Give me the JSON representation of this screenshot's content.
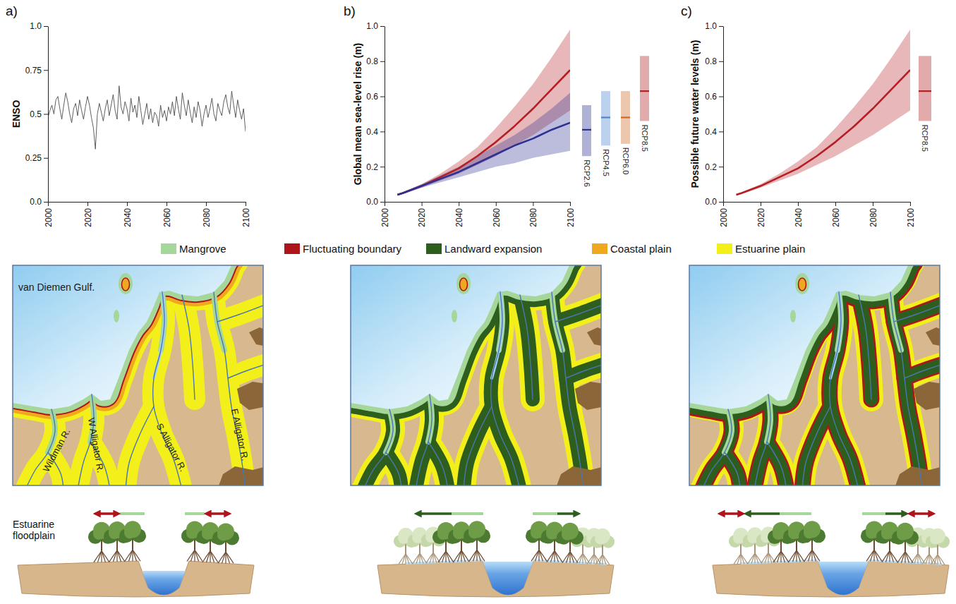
{
  "chart_data": [
    {
      "type": "line",
      "panel_label": "a)",
      "y_label": "ENSO",
      "x": [
        2000,
        2001,
        2002,
        2003,
        2004,
        2005,
        2006,
        2007,
        2008,
        2009,
        2010,
        2011,
        2012,
        2013,
        2014,
        2015,
        2016,
        2017,
        2018,
        2019,
        2020,
        2021,
        2022,
        2023,
        2024,
        2025,
        2026,
        2027,
        2028,
        2029,
        2030,
        2031,
        2032,
        2033,
        2034,
        2035,
        2036,
        2037,
        2038,
        2039,
        2040,
        2041,
        2042,
        2043,
        2044,
        2045,
        2046,
        2047,
        2048,
        2049,
        2050,
        2051,
        2052,
        2053,
        2054,
        2055,
        2056,
        2057,
        2058,
        2059,
        2060,
        2061,
        2062,
        2063,
        2064,
        2065,
        2066,
        2067,
        2068,
        2069,
        2070,
        2071,
        2072,
        2073,
        2074,
        2075,
        2076,
        2077,
        2078,
        2079,
        2080,
        2081,
        2082,
        2083,
        2084,
        2085,
        2086,
        2087,
        2088,
        2089,
        2090,
        2091,
        2092,
        2093,
        2094,
        2095,
        2096,
        2097,
        2098,
        2099,
        2100
      ],
      "series": [
        {
          "color": "#4d4d4d",
          "values": [
            0.48,
            0.52,
            0.55,
            0.5,
            0.58,
            0.6,
            0.53,
            0.47,
            0.55,
            0.62,
            0.57,
            0.5,
            0.45,
            0.53,
            0.56,
            0.49,
            0.58,
            0.52,
            0.47,
            0.54,
            0.6,
            0.55,
            0.48,
            0.42,
            0.3,
            0.5,
            0.56,
            0.51,
            0.46,
            0.53,
            0.58,
            0.49,
            0.55,
            0.61,
            0.52,
            0.47,
            0.66,
            0.54,
            0.5,
            0.57,
            0.53,
            0.46,
            0.59,
            0.51,
            0.55,
            0.48,
            0.6,
            0.52,
            0.44,
            0.5,
            0.56,
            0.47,
            0.53,
            0.45,
            0.51,
            0.49,
            0.43,
            0.55,
            0.48,
            0.52,
            0.46,
            0.54,
            0.5,
            0.57,
            0.49,
            0.6,
            0.53,
            0.47,
            0.62,
            0.55,
            0.49,
            0.58,
            0.51,
            0.45,
            0.54,
            0.48,
            0.57,
            0.52,
            0.43,
            0.5,
            0.55,
            0.48,
            0.53,
            0.59,
            0.5,
            0.46,
            0.56,
            0.52,
            0.49,
            0.57,
            0.61,
            0.54,
            0.5,
            0.63,
            0.55,
            0.48,
            0.58,
            0.52,
            0.47,
            0.53,
            0.4
          ]
        }
      ],
      "xlim": [
        2000,
        2100
      ],
      "ylim": [
        0,
        1
      ],
      "xticks": [
        2000,
        2020,
        2040,
        2060,
        2080,
        2100
      ],
      "yticks": [
        {
          "value": 0,
          "label": "0.0"
        },
        0.25,
        0.5,
        0.75,
        {
          "value": 1,
          "label": "1.0"
        }
      ],
      "grid": false
    },
    {
      "type": "line",
      "panel_label": "b)",
      "y_label": "Global mean sea-level rise (m)",
      "x": [
        2007,
        2010,
        2020,
        2030,
        2040,
        2050,
        2060,
        2070,
        2080,
        2090,
        2100
      ],
      "series": [
        {
          "color": "#b51f24",
          "values": [
            0.04,
            0.05,
            0.09,
            0.14,
            0.19,
            0.26,
            0.34,
            0.43,
            0.53,
            0.64,
            0.75
          ],
          "lower": [
            0.035,
            0.045,
            0.08,
            0.12,
            0.16,
            0.21,
            0.26,
            0.32,
            0.38,
            0.45,
            0.52
          ],
          "upper": [
            0.045,
            0.055,
            0.1,
            0.16,
            0.23,
            0.31,
            0.42,
            0.54,
            0.67,
            0.82,
            0.98
          ]
        },
        {
          "color": "#2e3192",
          "values": [
            0.04,
            0.05,
            0.09,
            0.13,
            0.17,
            0.22,
            0.27,
            0.32,
            0.36,
            0.41,
            0.45
          ],
          "lower": [
            0.035,
            0.045,
            0.08,
            0.11,
            0.14,
            0.17,
            0.2,
            0.22,
            0.25,
            0.27,
            0.29
          ],
          "upper": [
            0.045,
            0.055,
            0.1,
            0.15,
            0.2,
            0.26,
            0.32,
            0.38,
            0.45,
            0.53,
            0.62
          ]
        }
      ],
      "ranges": [
        {
          "name": "RCP2.6",
          "low": 0.26,
          "median": 0.41,
          "high": 0.55,
          "color": "#2e3192"
        },
        {
          "name": "RCP4.5",
          "low": 0.32,
          "median": 0.48,
          "high": 0.63,
          "color": "#4f86cf"
        },
        {
          "name": "RCP6.0",
          "low": 0.33,
          "median": 0.48,
          "high": 0.63,
          "color": "#d0692a"
        },
        {
          "name": "RCP8.5",
          "low": 0.46,
          "median": 0.63,
          "high": 0.83,
          "color": "#b51f24"
        }
      ],
      "xlim": [
        2000,
        2100
      ],
      "ylim": [
        0,
        1
      ],
      "xticks": [
        2000,
        2020,
        2040,
        2060,
        2080,
        2100
      ],
      "yticks": [
        {
          "value": 0,
          "label": "0.0"
        },
        0.2,
        0.4,
        0.6,
        0.8,
        {
          "value": 1,
          "label": "1.0"
        }
      ],
      "grid": false
    },
    {
      "type": "line",
      "panel_label": "c)",
      "y_label": "Possible future water levels (m)",
      "x": [
        2007,
        2010,
        2020,
        2030,
        2040,
        2050,
        2060,
        2070,
        2080,
        2090,
        2100
      ],
      "series": [
        {
          "color": "#b51f24",
          "values": [
            0.04,
            0.05,
            0.09,
            0.14,
            0.19,
            0.26,
            0.34,
            0.43,
            0.53,
            0.64,
            0.75
          ],
          "lower": [
            0.035,
            0.045,
            0.08,
            0.12,
            0.16,
            0.21,
            0.26,
            0.32,
            0.38,
            0.45,
            0.52
          ],
          "upper": [
            0.045,
            0.055,
            0.1,
            0.16,
            0.23,
            0.31,
            0.42,
            0.54,
            0.67,
            0.82,
            0.98
          ]
        }
      ],
      "ranges": [
        {
          "name": "RCP8.5",
          "low": 0.46,
          "median": 0.63,
          "high": 0.83,
          "color": "#b51f24"
        }
      ],
      "xlim": [
        2000,
        2100
      ],
      "ylim": [
        0,
        1
      ],
      "xticks": [
        2000,
        2020,
        2040,
        2060,
        2080,
        2100
      ],
      "yticks": [
        {
          "value": 0,
          "label": "0.0"
        },
        0.2,
        0.4,
        0.6,
        0.8,
        {
          "value": 1,
          "label": "1.0"
        }
      ],
      "grid": false
    }
  ],
  "map_legend": {
    "items": [
      {
        "label": "Mangrove",
        "color": "#a6d79a"
      },
      {
        "label": "Fluctuating boundary",
        "color": "#b0141b"
      },
      {
        "label": "Landward expansion",
        "color": "#2e5e1e"
      },
      {
        "label": "Coastal plain",
        "color": "#f0a81e"
      },
      {
        "label": "Estuarine plain",
        "color": "#f3ef1a"
      }
    ]
  },
  "map_labels": {
    "gulf": "van Diemen Gulf.",
    "rivers": [
      "Wildman R.",
      "W Alligator R.",
      "S Alligator R.",
      "E Alligator R."
    ]
  },
  "cross_section": {
    "label": "Estuarine floodplain"
  }
}
